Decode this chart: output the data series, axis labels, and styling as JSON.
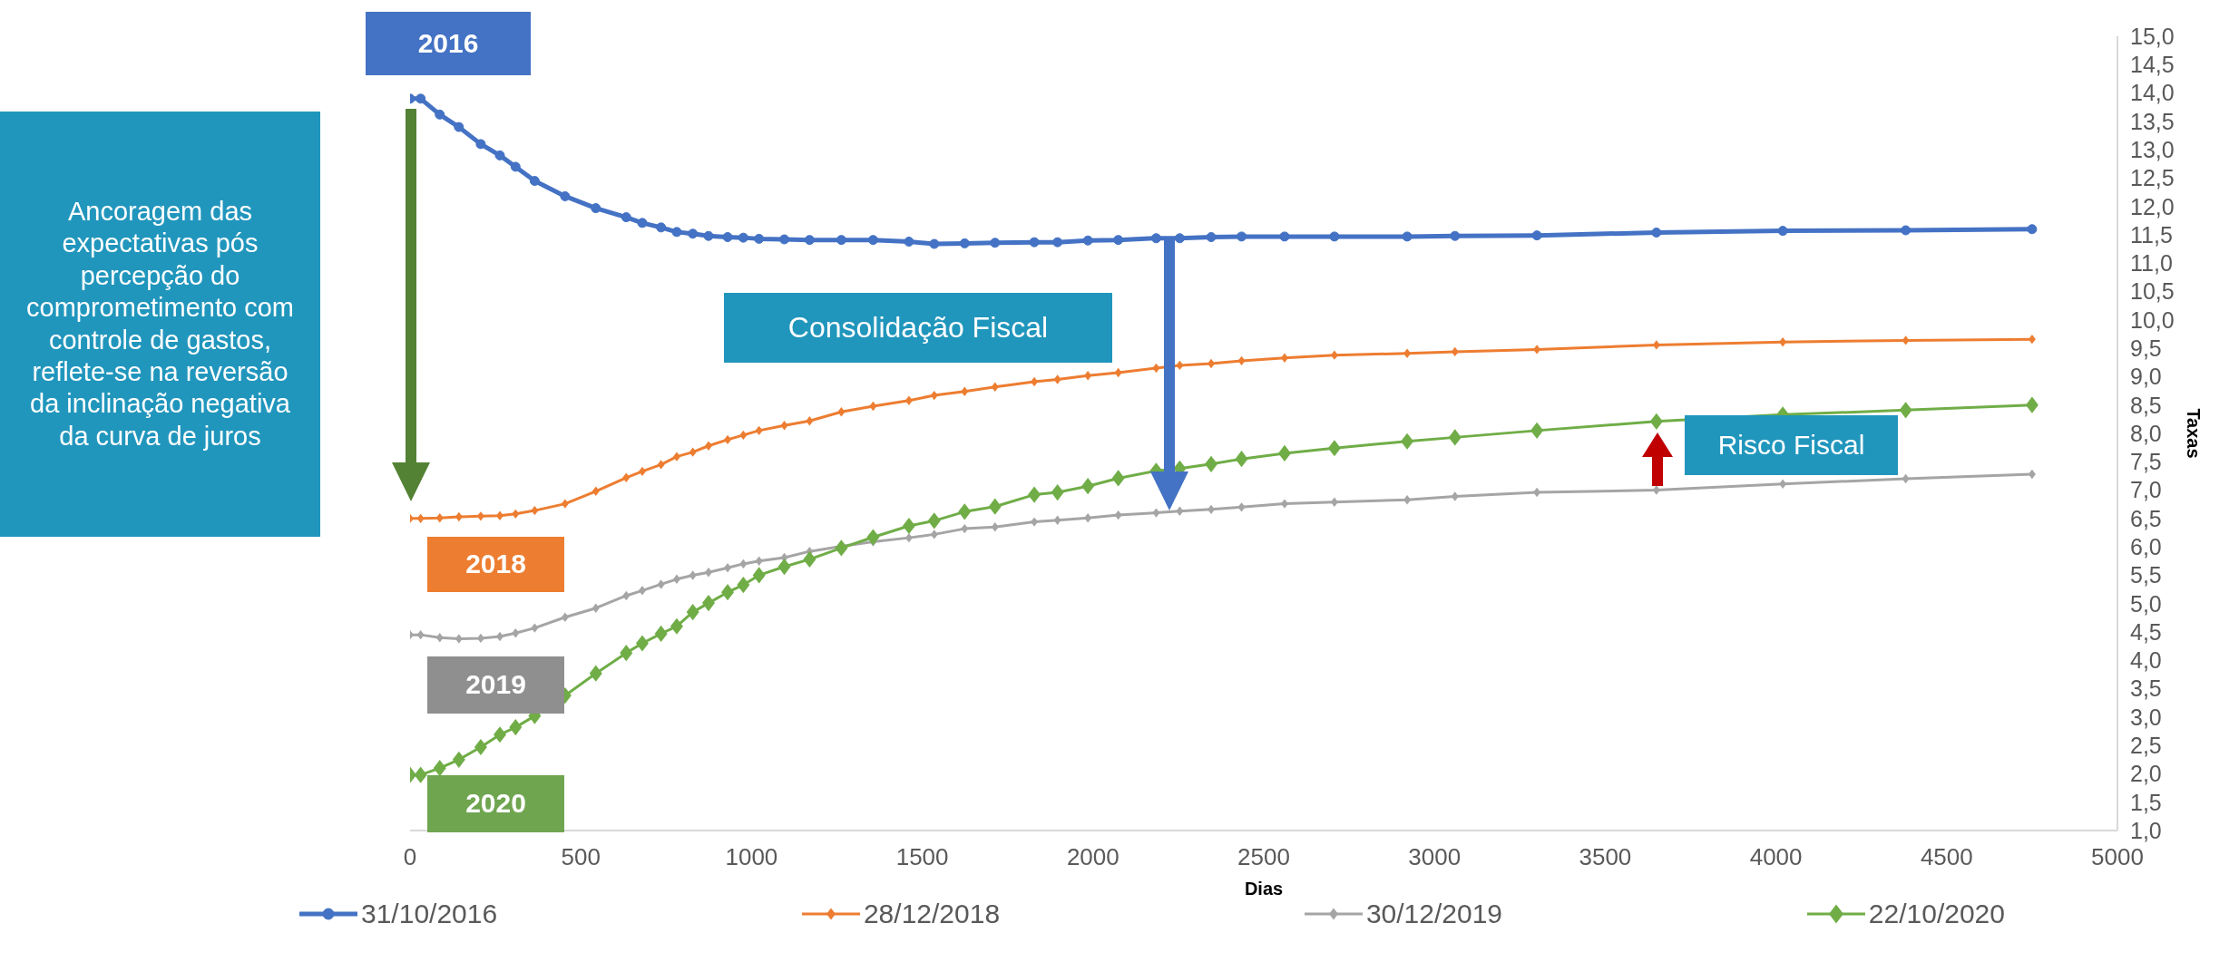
{
  "chart_data": {
    "type": "line",
    "xlabel": "Dias",
    "ylabel": "Taxas",
    "legend": "bottom",
    "grid": false,
    "xlim": [
      0,
      5000
    ],
    "xticks": [
      0,
      500,
      1000,
      1500,
      2000,
      2500,
      3000,
      3500,
      4000,
      4500,
      5000
    ],
    "ylim": [
      1,
      15
    ],
    "yticks": [
      {
        "value": 1,
        "label": "1,0"
      },
      {
        "value": 1.5,
        "label": "1,5"
      },
      {
        "value": 2,
        "label": "2,0"
      },
      {
        "value": 2.5,
        "label": "2,5"
      },
      {
        "value": 3,
        "label": "3,0"
      },
      {
        "value": 3.5,
        "label": "3,5"
      },
      {
        "value": 4,
        "label": "4,0"
      },
      {
        "value": 4.5,
        "label": "4,5"
      },
      {
        "value": 5,
        "label": "5,0"
      },
      {
        "value": 5.5,
        "label": "5,5"
      },
      {
        "value": 6,
        "label": "6,0"
      },
      {
        "value": 6.5,
        "label": "6,5"
      },
      {
        "value": 7,
        "label": "7,0"
      },
      {
        "value": 7.5,
        "label": "7,5"
      },
      {
        "value": 8,
        "label": "8,0"
      },
      {
        "value": 8.5,
        "label": "8,5"
      },
      {
        "value": 9,
        "label": "9,0"
      },
      {
        "value": 9.5,
        "label": "9,5"
      },
      {
        "value": 10,
        "label": "10,0"
      },
      {
        "value": 10.5,
        "label": "10,5"
      },
      {
        "value": 11,
        "label": "11,0"
      },
      {
        "value": 11.5,
        "label": "11,5"
      },
      {
        "value": 12,
        "label": "12,0"
      },
      {
        "value": 12.5,
        "label": "12,5"
      },
      {
        "value": 13,
        "label": "13,0"
      },
      {
        "value": 13.5,
        "label": "13,5"
      },
      {
        "value": 14,
        "label": "14,0"
      },
      {
        "value": 14.5,
        "label": "14,5"
      },
      {
        "value": 15,
        "label": "15,0"
      }
    ],
    "x": [
      0,
      31,
      87,
      143,
      207,
      263,
      309,
      365,
      454,
      544,
      633,
      680,
      735,
      781,
      828,
      874,
      930,
      976,
      1022,
      1096,
      1170,
      1263,
      1356,
      1461,
      1535,
      1624,
      1713,
      1828,
      1896,
      1985,
      2074,
      2185,
      2254,
      2346,
      2435,
      2561,
      2707,
      2920,
      3060,
      3300,
      3650,
      4020,
      4380,
      4750
    ],
    "series": [
      {
        "name": "31/10/2016",
        "color": "#4472c4",
        "marker": "circle",
        "values": [
          13.9,
          13.9,
          13.62,
          13.4,
          13.1,
          12.9,
          12.7,
          12.45,
          12.18,
          11.97,
          11.81,
          11.71,
          11.63,
          11.55,
          11.52,
          11.48,
          11.46,
          11.45,
          11.43,
          11.42,
          11.41,
          11.41,
          11.41,
          11.38,
          11.34,
          11.35,
          11.36,
          11.37,
          11.37,
          11.4,
          11.41,
          11.44,
          11.44,
          11.46,
          11.47,
          11.47,
          11.47,
          11.47,
          11.48,
          11.49,
          11.54,
          11.57,
          11.58,
          11.6
        ]
      },
      {
        "name": "28/12/2018",
        "color": "#ed7d31",
        "marker": "diamond",
        "values": [
          6.5,
          6.5,
          6.51,
          6.53,
          6.54,
          6.55,
          6.58,
          6.64,
          6.76,
          6.98,
          7.22,
          7.33,
          7.45,
          7.59,
          7.67,
          7.78,
          7.89,
          7.97,
          8.05,
          8.14,
          8.22,
          8.38,
          8.48,
          8.58,
          8.67,
          8.74,
          8.82,
          8.91,
          8.95,
          9.02,
          9.07,
          9.15,
          9.2,
          9.23,
          9.28,
          9.33,
          9.38,
          9.41,
          9.44,
          9.48,
          9.56,
          9.61,
          9.64,
          9.66
        ]
      },
      {
        "name": "30/12/2019",
        "color": "#a5a5a5",
        "marker": "diamond",
        "values": [
          4.45,
          4.45,
          4.4,
          4.38,
          4.39,
          4.42,
          4.48,
          4.57,
          4.76,
          4.92,
          5.14,
          5.23,
          5.34,
          5.43,
          5.5,
          5.55,
          5.63,
          5.7,
          5.75,
          5.81,
          5.92,
          6.01,
          6.09,
          6.16,
          6.22,
          6.32,
          6.35,
          6.44,
          6.47,
          6.51,
          6.56,
          6.6,
          6.63,
          6.66,
          6.7,
          6.76,
          6.79,
          6.83,
          6.89,
          6.96,
          7.0,
          7.11,
          7.2,
          7.28
        ]
      },
      {
        "name": "22/10/2020",
        "color": "#70ad47",
        "marker": "diamond",
        "values": [
          1.98,
          1.98,
          2.1,
          2.25,
          2.47,
          2.69,
          2.82,
          3.02,
          3.38,
          3.77,
          4.13,
          4.3,
          4.47,
          4.6,
          4.85,
          5.01,
          5.2,
          5.33,
          5.5,
          5.65,
          5.78,
          5.98,
          6.17,
          6.37,
          6.46,
          6.62,
          6.71,
          6.92,
          6.96,
          7.07,
          7.21,
          7.34,
          7.38,
          7.46,
          7.55,
          7.65,
          7.74,
          7.86,
          7.93,
          8.05,
          8.21,
          8.33,
          8.41,
          8.5
        ]
      }
    ],
    "annotations": [
      "2016",
      "Ancoragem das expectativas pós percepção do comprometimento com controle de gastos, reflete-se na reversão da inclinação negativa da curva de juros",
      "Consolidação Fiscal",
      "Risco Fiscal",
      "2018",
      "2019",
      "2020"
    ]
  }
}
